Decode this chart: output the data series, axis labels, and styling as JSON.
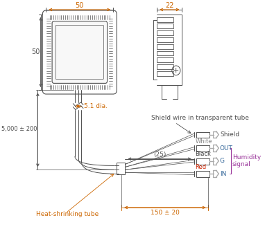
{
  "bg_color": "#ffffff",
  "line_color": "#505050",
  "orange_color": "#cc6600",
  "blue_color": "#336699",
  "purple_color": "#993399",
  "dim_50_top": "50",
  "dim_50_left": "50",
  "dim_22": "22",
  "dia_label": "5.1 dia.",
  "length_label": "5,000 ± 200",
  "heat_label": "Heat-shrinking tube",
  "shield_label": "Shield wire in transparent tube",
  "dim_25": "(25)",
  "dim_150": "150 ± 20",
  "shield_text": "Shield",
  "white_text": "White",
  "black_text": "Black",
  "red_text": "Red",
  "out_text": "OUT",
  "g_text": "G",
  "in_text": "IN",
  "humidity_text": "Humidity\nsignal"
}
